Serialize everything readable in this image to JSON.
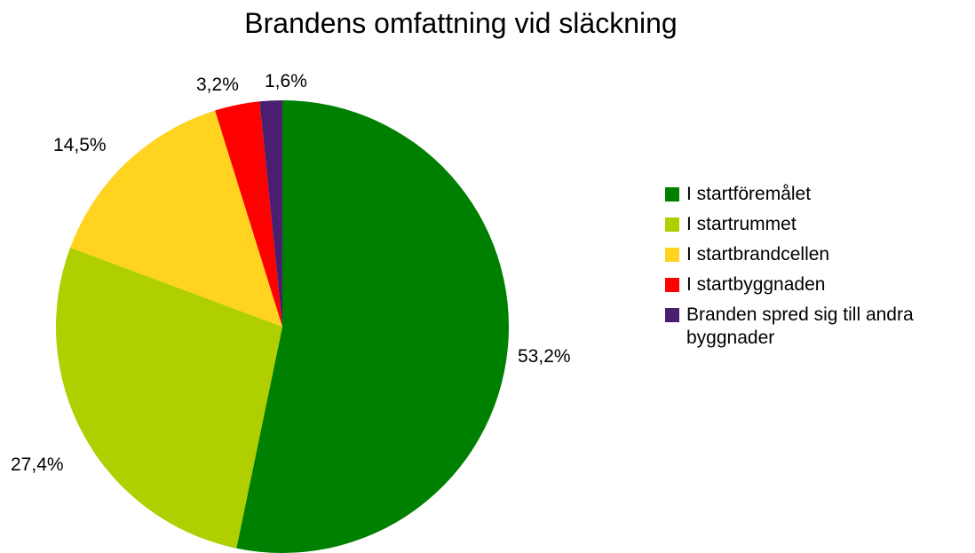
{
  "chart_data": {
    "type": "pie",
    "title": "Brandens omfattning vid släckning",
    "categories": [
      "I startföremålet",
      "I startrummet",
      "I startbrandcellen",
      "I startbyggnaden",
      "Branden spred sig till andra byggnader"
    ],
    "values": [
      53.2,
      27.4,
      14.5,
      3.2,
      1.6
    ],
    "labels": [
      "53,2%",
      "27,4%",
      "14,5%",
      "3,2%",
      "1,6%"
    ],
    "colors": [
      "#008000",
      "#b0cf00",
      "#ffd320",
      "#ff0000",
      "#4b1f6f"
    ],
    "legend_position": "right",
    "start_angle": "top",
    "direction": "clockwise"
  }
}
